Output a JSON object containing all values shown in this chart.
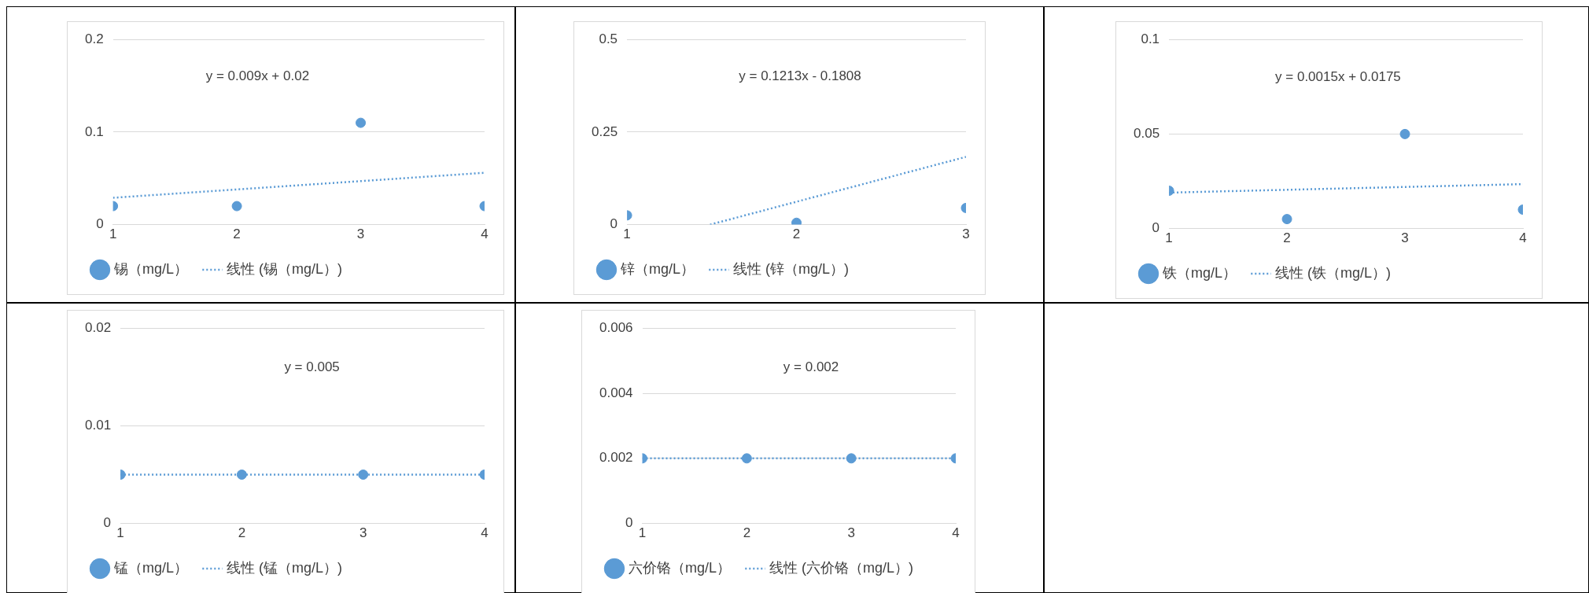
{
  "chart_data": [
    {
      "type": "scatter",
      "x": [
        1,
        2,
        3,
        4
      ],
      "xlim": [
        1,
        4
      ],
      "xticks": [
        1,
        2,
        3,
        4
      ],
      "ylim": [
        0,
        0.2
      ],
      "yticks": [
        0,
        0.1,
        0.2
      ],
      "grid": "y",
      "legend": "bottom",
      "annotations": [
        "y = 0.009x + 0.02"
      ],
      "series": [
        {
          "name": "锡（mg/L）",
          "color": "#5b9bd5",
          "values": [
            0.02,
            0.02,
            0.11,
            0.02
          ],
          "marker": "circle"
        },
        {
          "name": "线性 (锡（mg/L）)",
          "type": "line",
          "color": "#5b9bd5",
          "x": [
            1,
            4
          ],
          "values": [
            0.029,
            0.056
          ],
          "line_style": "dotted",
          "marker": "none"
        }
      ]
    },
    {
      "type": "scatter",
      "x": [
        1,
        2,
        3
      ],
      "xlim": [
        1,
        3
      ],
      "xticks": [
        1,
        2,
        3
      ],
      "ylim": [
        0,
        0.5
      ],
      "yticks": [
        0,
        0.25,
        0.5
      ],
      "grid": "y",
      "legend": "bottom",
      "annotations": [
        "y = 0.1213x - 0.1808"
      ],
      "series": [
        {
          "name": "锌（mg/L）",
          "color": "#5b9bd5",
          "values": [
            0.025,
            0.005,
            0.045
          ],
          "marker": "circle"
        },
        {
          "name": "线性 (锌（mg/L）)",
          "type": "line",
          "color": "#5b9bd5",
          "x": [
            1.49,
            3
          ],
          "values": [
            0,
            0.183
          ],
          "line_style": "dotted",
          "marker": "none"
        }
      ]
    },
    {
      "type": "scatter",
      "x": [
        1,
        2,
        3,
        4
      ],
      "xlim": [
        1,
        4
      ],
      "xticks": [
        1,
        2,
        3,
        4
      ],
      "ylim": [
        0,
        0.1
      ],
      "yticks": [
        0,
        0.05,
        0.1
      ],
      "grid": "y",
      "legend": "bottom",
      "annotations": [
        "y = 0.0015x + 0.0175"
      ],
      "series": [
        {
          "name": "铁（mg/L）",
          "color": "#5b9bd5",
          "values": [
            0.02,
            0.005,
            0.05,
            0.01
          ],
          "marker": "circle"
        },
        {
          "name": "线性 (铁（mg/L）)",
          "type": "line",
          "color": "#5b9bd5",
          "x": [
            1,
            4
          ],
          "values": [
            0.019,
            0.0235
          ],
          "line_style": "dotted",
          "marker": "none"
        }
      ]
    },
    {
      "type": "scatter",
      "x": [
        1,
        2,
        3,
        4
      ],
      "xlim": [
        1,
        4
      ],
      "xticks": [
        1,
        2,
        3,
        4
      ],
      "ylim": [
        0,
        0.02
      ],
      "yticks": [
        0,
        0.01,
        0.02
      ],
      "grid": "y",
      "legend": "bottom",
      "annotations": [
        "y = 0.005"
      ],
      "series": [
        {
          "name": "锰（mg/L）",
          "color": "#5b9bd5",
          "values": [
            0.005,
            0.005,
            0.005,
            0.005
          ],
          "marker": "circle"
        },
        {
          "name": "线性 (锰（mg/L）)",
          "type": "line",
          "color": "#5b9bd5",
          "x": [
            1,
            4
          ],
          "values": [
            0.005,
            0.005
          ],
          "line_style": "dotted",
          "marker": "none"
        }
      ]
    },
    {
      "type": "scatter",
      "x": [
        1,
        2,
        3,
        4
      ],
      "xlim": [
        1,
        4
      ],
      "xticks": [
        1,
        2,
        3,
        4
      ],
      "ylim": [
        0,
        0.006
      ],
      "yticks": [
        0,
        0.002,
        0.004,
        0.006
      ],
      "grid": "y",
      "legend": "bottom",
      "annotations": [
        "y = 0.002"
      ],
      "series": [
        {
          "name": "六价铬（mg/L）",
          "color": "#5b9bd5",
          "values": [
            0.002,
            0.002,
            0.002,
            0.002
          ],
          "marker": "circle"
        },
        {
          "name": "线性 (六价铬（mg/L）)",
          "type": "line",
          "color": "#5b9bd5",
          "x": [
            1,
            4
          ],
          "values": [
            0.002,
            0.002
          ],
          "line_style": "dotted",
          "marker": "none"
        }
      ]
    }
  ]
}
